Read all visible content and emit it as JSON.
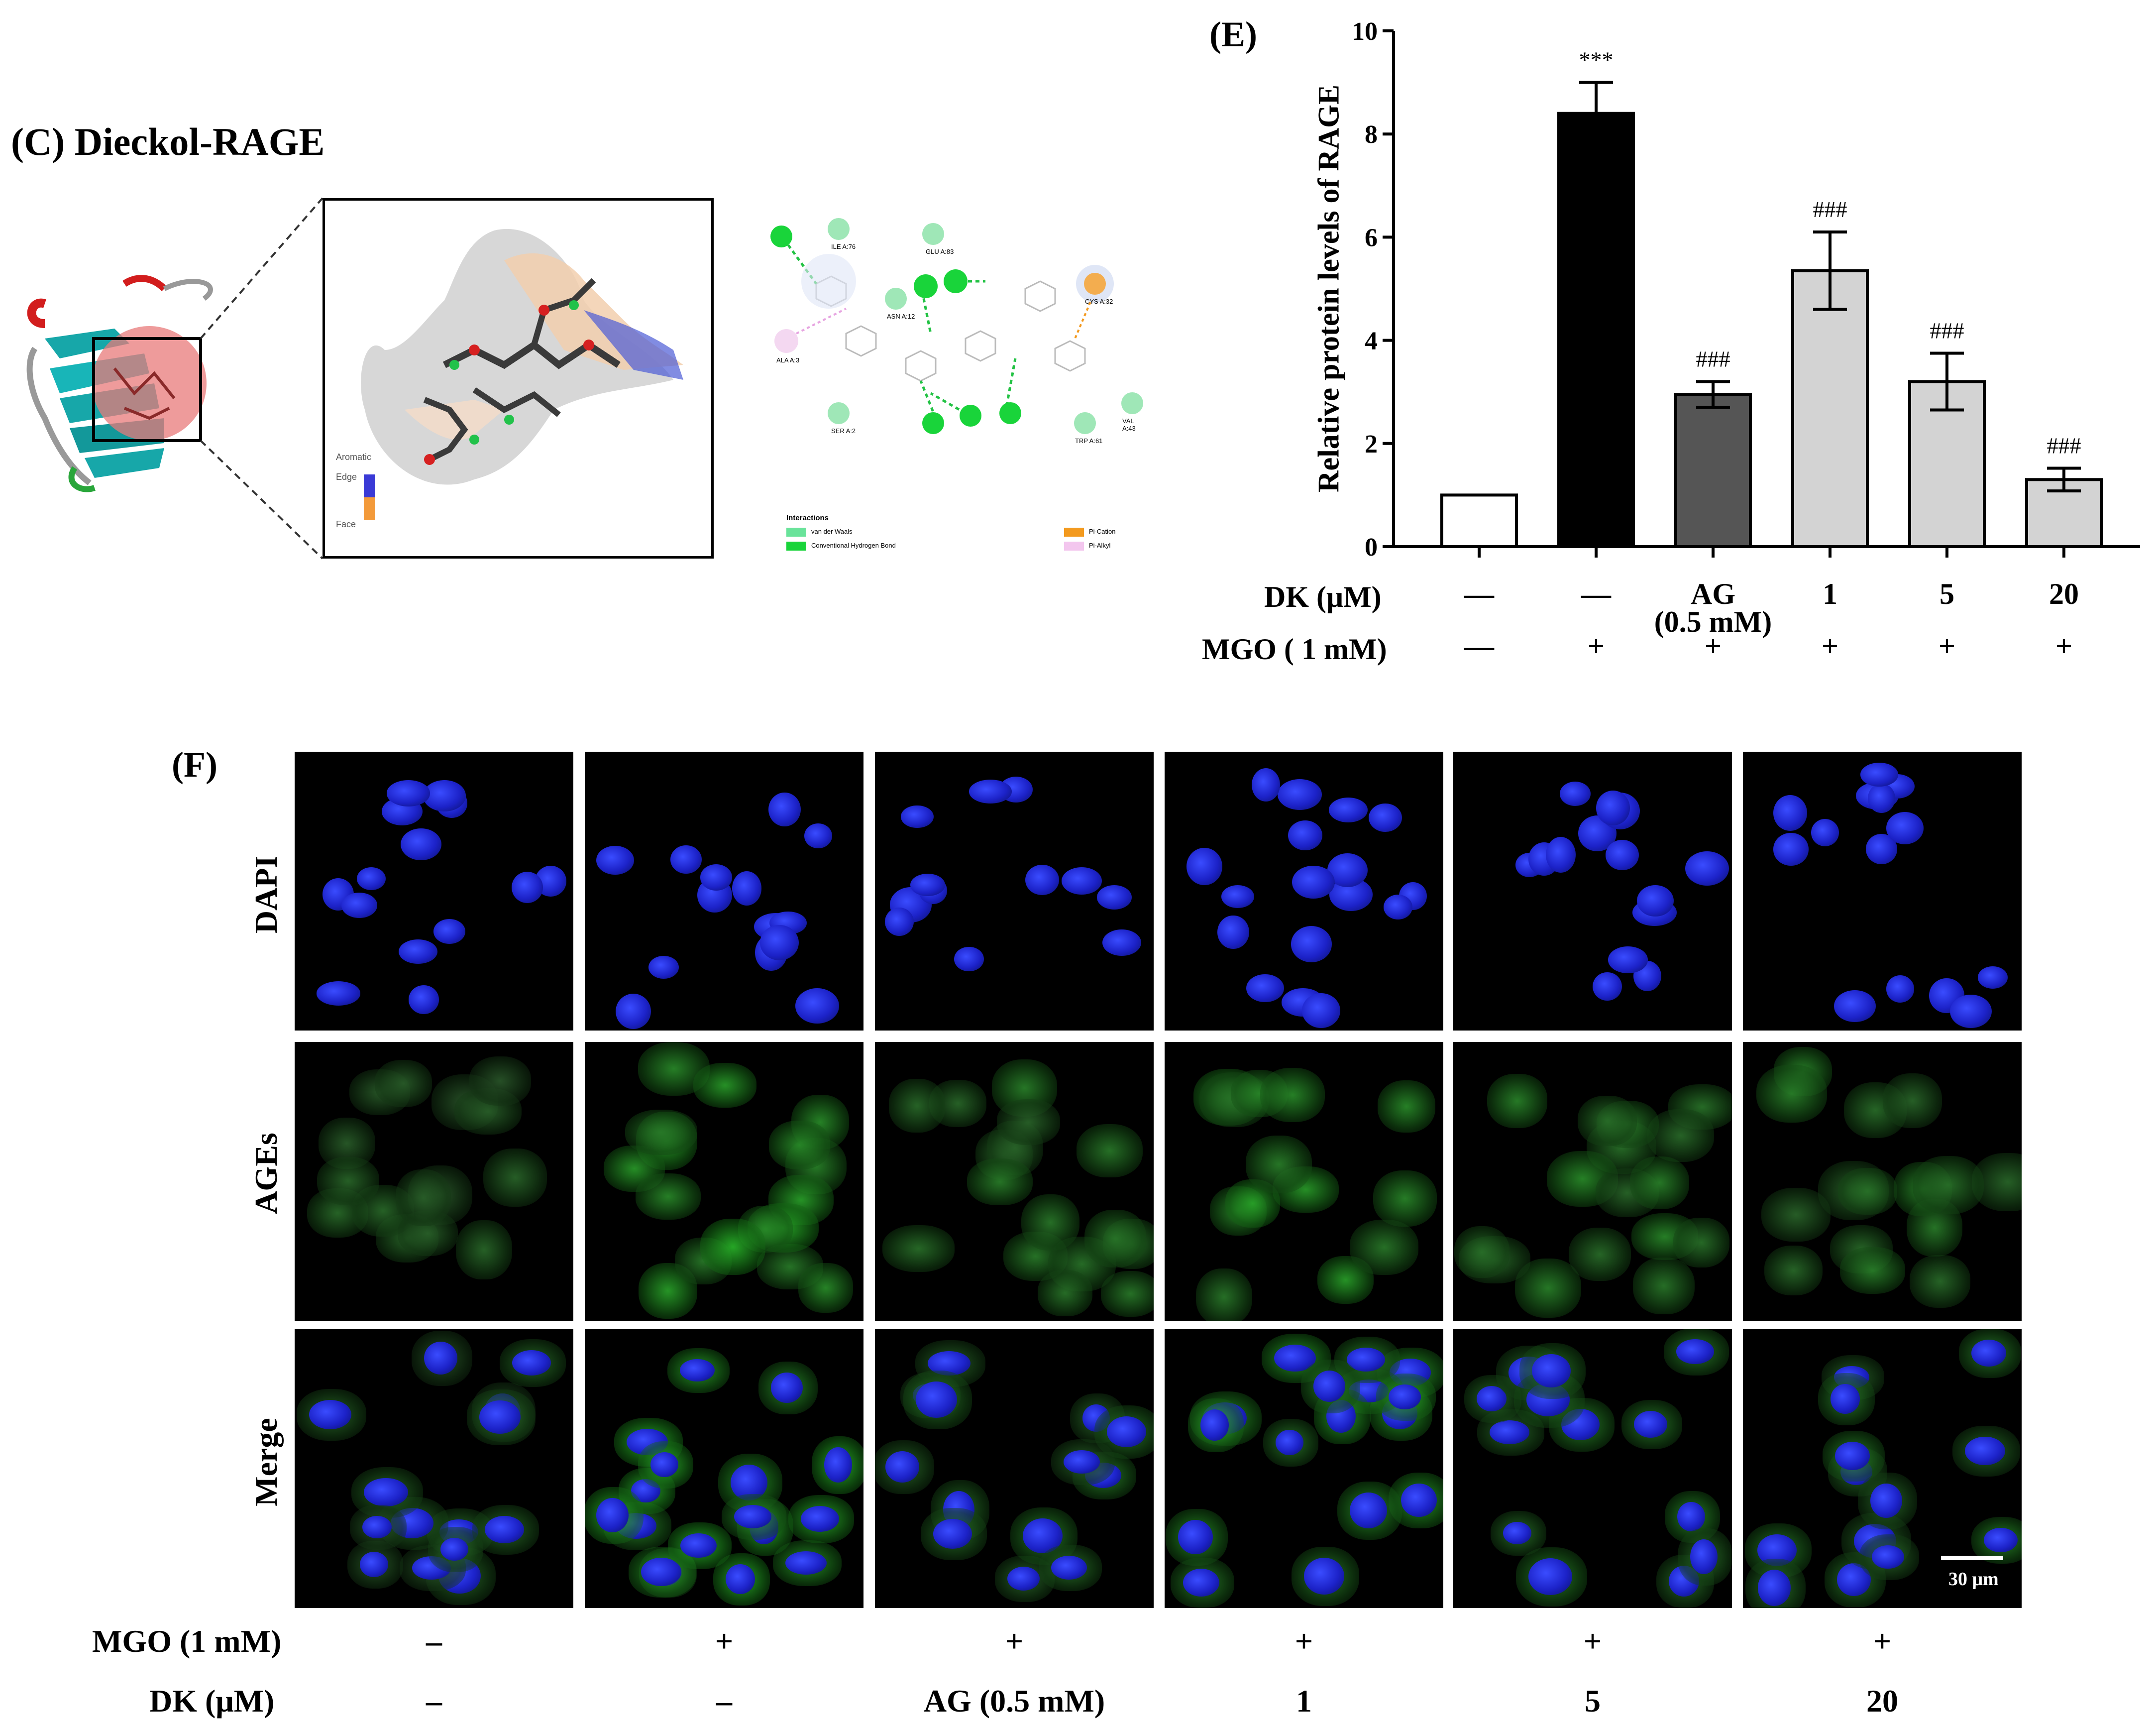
{
  "panel_c": {
    "title": "(C) Dieckol-RAGE",
    "surface_legend": {
      "top": "Aromatic",
      "edge": "Edge",
      "face": "Face"
    },
    "residues": [
      {
        "label": "ILE A:76"
      },
      {
        "label": "GLU A:83"
      },
      {
        "label": "ASN A:12"
      },
      {
        "label": "ALA A:3"
      },
      {
        "label": "CYS A:32"
      },
      {
        "label": "SER A:2"
      },
      {
        "label": "TRP A:61"
      },
      {
        "label": "VAL A:43"
      }
    ],
    "interactions": {
      "title": "Interactions",
      "items": [
        "van der Waals",
        "Conventional Hydrogen Bond",
        "Pi-Cation",
        "Pi-Alkyl"
      ],
      "colors": [
        "#69e39a",
        "#19d43a",
        "#f39a1f",
        "#f3c6ee"
      ]
    }
  },
  "panel_e": {
    "label": "(E)",
    "chart_data": {
      "type": "bar",
      "ylabel": "Relative protein levels of  RAGE",
      "ylim": [
        0,
        10
      ],
      "yticks": [
        "0",
        "2",
        "4",
        "6",
        "8",
        "10"
      ],
      "values": [
        1.0,
        8.4,
        2.95,
        5.35,
        3.2,
        1.3
      ],
      "errors": [
        0.0,
        0.6,
        0.25,
        0.75,
        0.55,
        0.22
      ],
      "colors": [
        "#ffffff",
        "#000000",
        "#555555",
        "#d3d3d3",
        "#d3d3d3",
        "#d3d3d3"
      ],
      "annotations": [
        "",
        "***",
        "###",
        "###",
        "###",
        "###"
      ],
      "rows": [
        {
          "label": "DK  (μM)",
          "values": [
            "—",
            "—",
            "AG\n(0.5 mM)",
            "1",
            "5",
            "20"
          ]
        },
        {
          "label": "MGO ( 1 mM)",
          "values": [
            "—",
            "+",
            "+",
            "+",
            "+",
            "+"
          ]
        }
      ]
    }
  },
  "panel_f": {
    "label": "(F)",
    "row_labels": [
      "DAPI",
      "AGEs",
      "Merge"
    ],
    "scale_bar": "30 μm",
    "bottom_rows": [
      {
        "label": "MGO (1 mM)",
        "values": [
          "–",
          "+",
          "+",
          "+",
          "+",
          "+"
        ]
      },
      {
        "label": "DK (μM)",
        "values": [
          "–",
          "–",
          "AG (0.5 mM)",
          "1",
          "5",
          "20"
        ]
      }
    ]
  }
}
